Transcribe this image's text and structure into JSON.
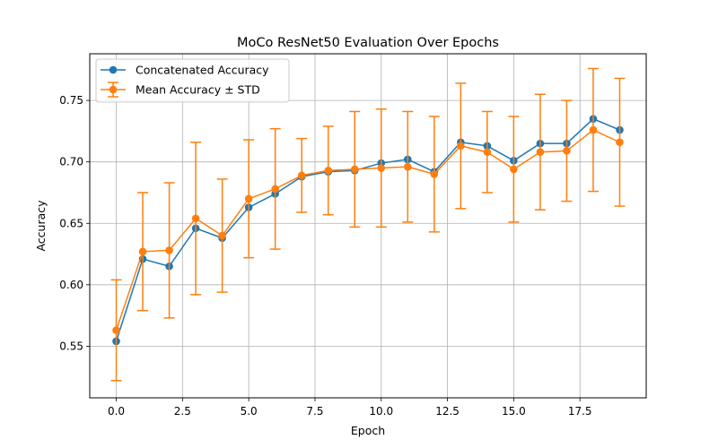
{
  "chart_data": {
    "type": "line",
    "title": "MoCo ResNet50 Evaluation Over Epochs",
    "xlabel": "Epoch",
    "ylabel": "Accuracy",
    "xlim": [
      -1,
      20
    ],
    "ylim": [
      0.508,
      0.788
    ],
    "xticks": [
      0,
      2.5,
      5,
      7.5,
      10,
      12.5,
      15,
      17.5
    ],
    "xtick_labels": [
      "0.0",
      "2.5",
      "5.0",
      "7.5",
      "10.0",
      "12.5",
      "15.0",
      "17.5"
    ],
    "yticks": [
      0.55,
      0.6,
      0.65,
      0.7,
      0.75
    ],
    "ytick_labels": [
      "0.55",
      "0.60",
      "0.65",
      "0.70",
      "0.75"
    ],
    "grid": true,
    "legend_position": "top-left",
    "x": [
      0,
      1,
      2,
      3,
      4,
      5,
      6,
      7,
      8,
      9,
      10,
      11,
      12,
      13,
      14,
      15,
      16,
      17,
      18,
      19
    ],
    "series": [
      {
        "name": "Concatenated Accuracy",
        "color": "#1f77b4",
        "values": [
          0.554,
          0.621,
          0.615,
          0.646,
          0.638,
          0.663,
          0.674,
          0.688,
          0.692,
          0.693,
          0.699,
          0.702,
          0.692,
          0.716,
          0.713,
          0.701,
          0.715,
          0.715,
          0.735,
          0.726
        ]
      },
      {
        "name": "Mean Accuracy ± STD",
        "color": "#ff7f0e",
        "values": [
          0.563,
          0.627,
          0.628,
          0.654,
          0.64,
          0.67,
          0.678,
          0.689,
          0.693,
          0.694,
          0.695,
          0.696,
          0.69,
          0.713,
          0.708,
          0.694,
          0.708,
          0.709,
          0.726,
          0.716
        ],
        "error": [
          0.041,
          0.048,
          0.055,
          0.062,
          0.046,
          0.048,
          0.049,
          0.03,
          0.036,
          0.047,
          0.048,
          0.045,
          0.047,
          0.051,
          0.033,
          0.043,
          0.047,
          0.041,
          0.05,
          0.052
        ]
      }
    ]
  }
}
